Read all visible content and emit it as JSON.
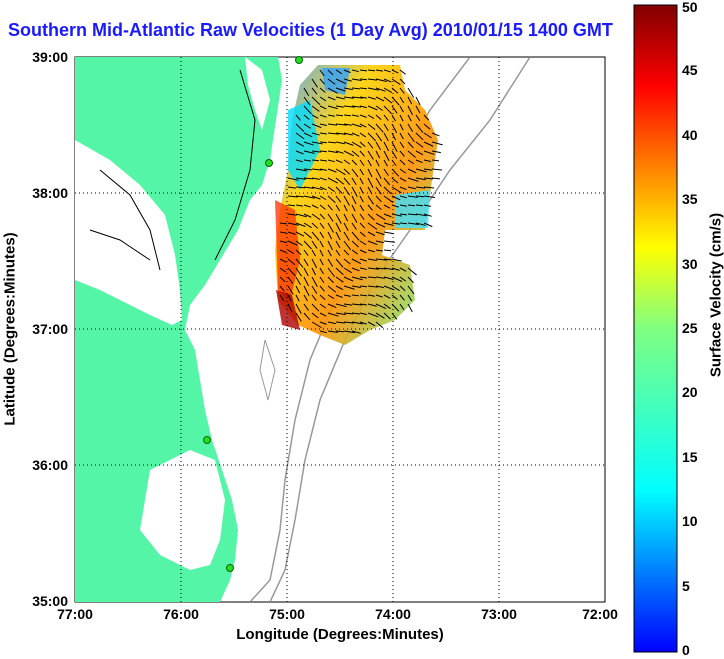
{
  "title": "Southern Mid-Atlantic Raw Velocities (1 Day Avg) 2010/01/15 1400 GMT",
  "axes": {
    "xlabel": "Longitude (Degrees:Minutes)",
    "ylabel": "Latitude (Degrees:Minutes)",
    "xticks": [
      "77:00",
      "76:00",
      "75:00",
      "74:00",
      "73:00",
      "72:00"
    ],
    "yticks": [
      "39:00",
      "38:00",
      "37:00",
      "36:00",
      "35:00"
    ]
  },
  "colorbar": {
    "label": "Surface Velocity (cm/s)",
    "ticks": [
      "0",
      "5",
      "10",
      "15",
      "20",
      "25",
      "30",
      "35",
      "40",
      "45",
      "50"
    ],
    "range": [
      0,
      50
    ],
    "colormap": "jet"
  },
  "colors": {
    "land": "#55f5a8",
    "ocean": "#ffffff",
    "title": "#1a1aff",
    "bathymetry": "#999999",
    "station": "#22dd22"
  }
}
